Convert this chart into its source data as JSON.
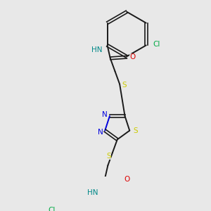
{
  "background_color": "#e8e8e8",
  "line_color": "#1a1a1a",
  "S_color": "#cccc00",
  "N_color": "#0000dd",
  "O_color": "#dd0000",
  "Cl_color": "#00aa44",
  "NH_color": "#008888",
  "figsize": [
    3.0,
    3.0
  ],
  "dpi": 100,
  "xlim": [
    0,
    300
  ],
  "ylim": [
    0,
    300
  ]
}
